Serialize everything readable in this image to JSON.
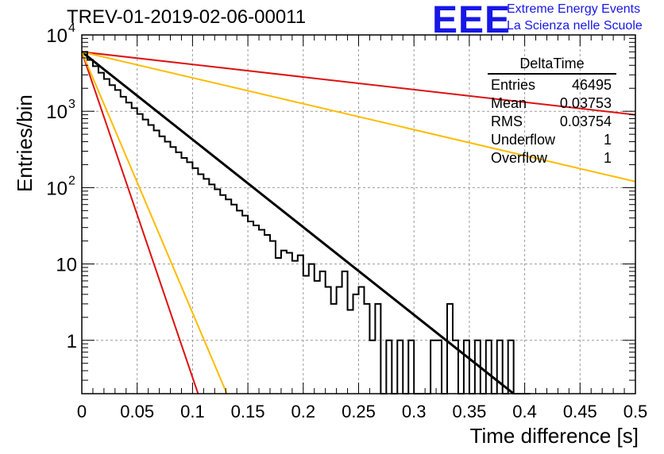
{
  "title": "TREV-01-2019-02-06-00011",
  "logo": {
    "mark": "EEE",
    "line1": "Extreme Energy Events",
    "line2": "La Scienza nelle Scuole",
    "color": "#1717e6"
  },
  "stats": {
    "name": "DeltaTime",
    "rows": [
      {
        "label": "Entries",
        "value": "46495"
      },
      {
        "label": "Mean",
        "value": "0.03753"
      },
      {
        "label": "RMS",
        "value": "0.03754"
      },
      {
        "label": "Underflow",
        "value": "1"
      },
      {
        "label": "Overflow",
        "value": "1"
      }
    ]
  },
  "chart_data": {
    "type": "line",
    "title": "TREV-01-2019-02-06-00011",
    "xlabel": "Time difference [s]",
    "ylabel": "Entries/bin",
    "xlim": [
      0,
      0.5
    ],
    "ylim": [
      0.2,
      10000
    ],
    "yscale": "log",
    "grid": true,
    "x_ticks": [
      "0",
      "0.05",
      "0.1",
      "0.15",
      "0.2",
      "0.25",
      "0.3",
      "0.35",
      "0.4",
      "0.45",
      "0.5"
    ],
    "y_ticks": [
      {
        "value": 1,
        "label": "1"
      },
      {
        "value": 10,
        "label": "10"
      },
      {
        "value": 100,
        "label": "10^2"
      },
      {
        "value": 1000,
        "label": "10^3"
      },
      {
        "value": 10000,
        "label": "10^4"
      }
    ],
    "histogram": {
      "color": "#000000",
      "bin_width": 0.005,
      "start": 0,
      "values": [
        6000,
        4700,
        3900,
        3200,
        2650,
        2200,
        1900,
        1550,
        1300,
        1100,
        920,
        780,
        660,
        560,
        470,
        400,
        340,
        290,
        245,
        215,
        180,
        150,
        130,
        110,
        95,
        80,
        70,
        60,
        50,
        43,
        36,
        32,
        28,
        24,
        20,
        12,
        15,
        14,
        11,
        13,
        7,
        10,
        6,
        8,
        5,
        3,
        5,
        8,
        2.5,
        4,
        5,
        3,
        1,
        3,
        1,
        1,
        1,
        1,
        1,
        1,
        1,
        1,
        1,
        1,
        1,
        1,
        1,
        1,
        1,
        1,
        1,
        1,
        1,
        1,
        1,
        1,
        1,
        1,
        1,
        1,
        1
      ],
      "data_values": [
        6000,
        4700,
        3900,
        3200,
        2650,
        2200,
        1900,
        1550,
        1300,
        1100,
        920,
        780,
        660,
        560,
        470,
        400,
        340,
        290,
        245,
        215,
        180,
        150,
        130,
        110,
        95,
        80,
        70,
        60,
        50,
        43,
        36,
        32,
        28,
        24,
        20,
        12,
        15,
        14,
        11,
        13,
        7,
        10,
        6,
        8,
        5,
        3,
        5,
        8,
        2.5,
        4,
        5,
        3,
        1,
        3,
        0.1,
        1,
        0.1,
        1,
        0.1,
        1,
        0.1,
        0.1,
        0.1,
        1,
        1,
        0.1,
        3,
        1,
        0.1,
        1,
        0.1,
        1,
        0.1,
        1,
        0.1,
        1,
        0.1,
        1,
        0.1,
        0.1,
        0.1
      ]
    },
    "series": [
      {
        "color": "#000000",
        "x": [
          0,
          0.39
        ],
        "y": [
          6000,
          0.2
        ]
      },
      {
        "color": "#dd1111",
        "x": [
          0,
          0.105
        ],
        "y": [
          6000,
          0.2
        ]
      },
      {
        "color": "#ffbb00",
        "x": [
          0,
          0.131
        ],
        "y": [
          6000,
          0.2
        ]
      },
      {
        "color": "#dd1111",
        "x": [
          0,
          0.5
        ],
        "y": [
          6000,
          900
        ]
      },
      {
        "color": "#ffbb00",
        "x": [
          0,
          0.5
        ],
        "y": [
          6000,
          120
        ]
      }
    ]
  }
}
